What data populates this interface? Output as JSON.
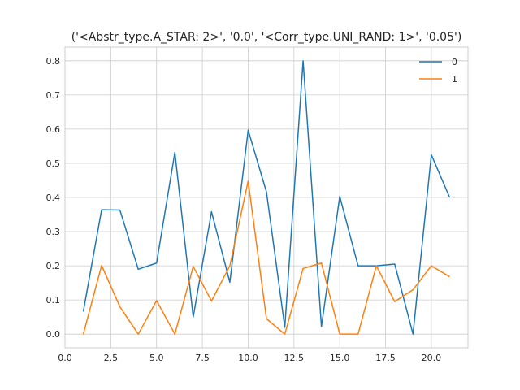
{
  "chart_data": {
    "type": "line",
    "title": "('<Abstr_type.A_STAR: 2>', '0.0', '<Corr_type.UNI_RAND: 1>', '0.05')",
    "xlabel": "",
    "ylabel": "",
    "xlim": [
      0,
      22
    ],
    "ylim": [
      -0.04,
      0.84
    ],
    "xticks": [
      "0.0",
      "2.5",
      "5.0",
      "7.5",
      "10.0",
      "12.5",
      "15.0",
      "17.5",
      "20.0"
    ],
    "yticks": [
      "0.0",
      "0.1",
      "0.2",
      "0.3",
      "0.4",
      "0.5",
      "0.6",
      "0.7",
      "0.8"
    ],
    "grid": true,
    "legend_position": "top-right",
    "x": [
      1,
      2,
      3,
      4,
      5,
      6,
      7,
      8,
      9,
      10,
      11,
      12,
      13,
      14,
      15,
      16,
      17,
      18,
      19,
      20,
      21
    ],
    "series": [
      {
        "name": "0",
        "color": "#1f77b4",
        "values": [
          0.066,
          0.364,
          0.363,
          0.19,
          0.208,
          0.532,
          0.05,
          0.358,
          0.152,
          0.597,
          0.416,
          0.02,
          0.8,
          0.022,
          0.403,
          0.2,
          0.2,
          0.205,
          0.0,
          0.525,
          0.4
        ]
      },
      {
        "name": "1",
        "color": "#ff7f0e",
        "values": [
          0.0,
          0.201,
          0.08,
          0.0,
          0.098,
          0.0,
          0.198,
          0.097,
          0.2,
          0.448,
          0.045,
          0.0,
          0.192,
          0.208,
          0.0,
          0.0,
          0.2,
          0.095,
          0.13,
          0.2,
          0.168
        ]
      }
    ]
  }
}
